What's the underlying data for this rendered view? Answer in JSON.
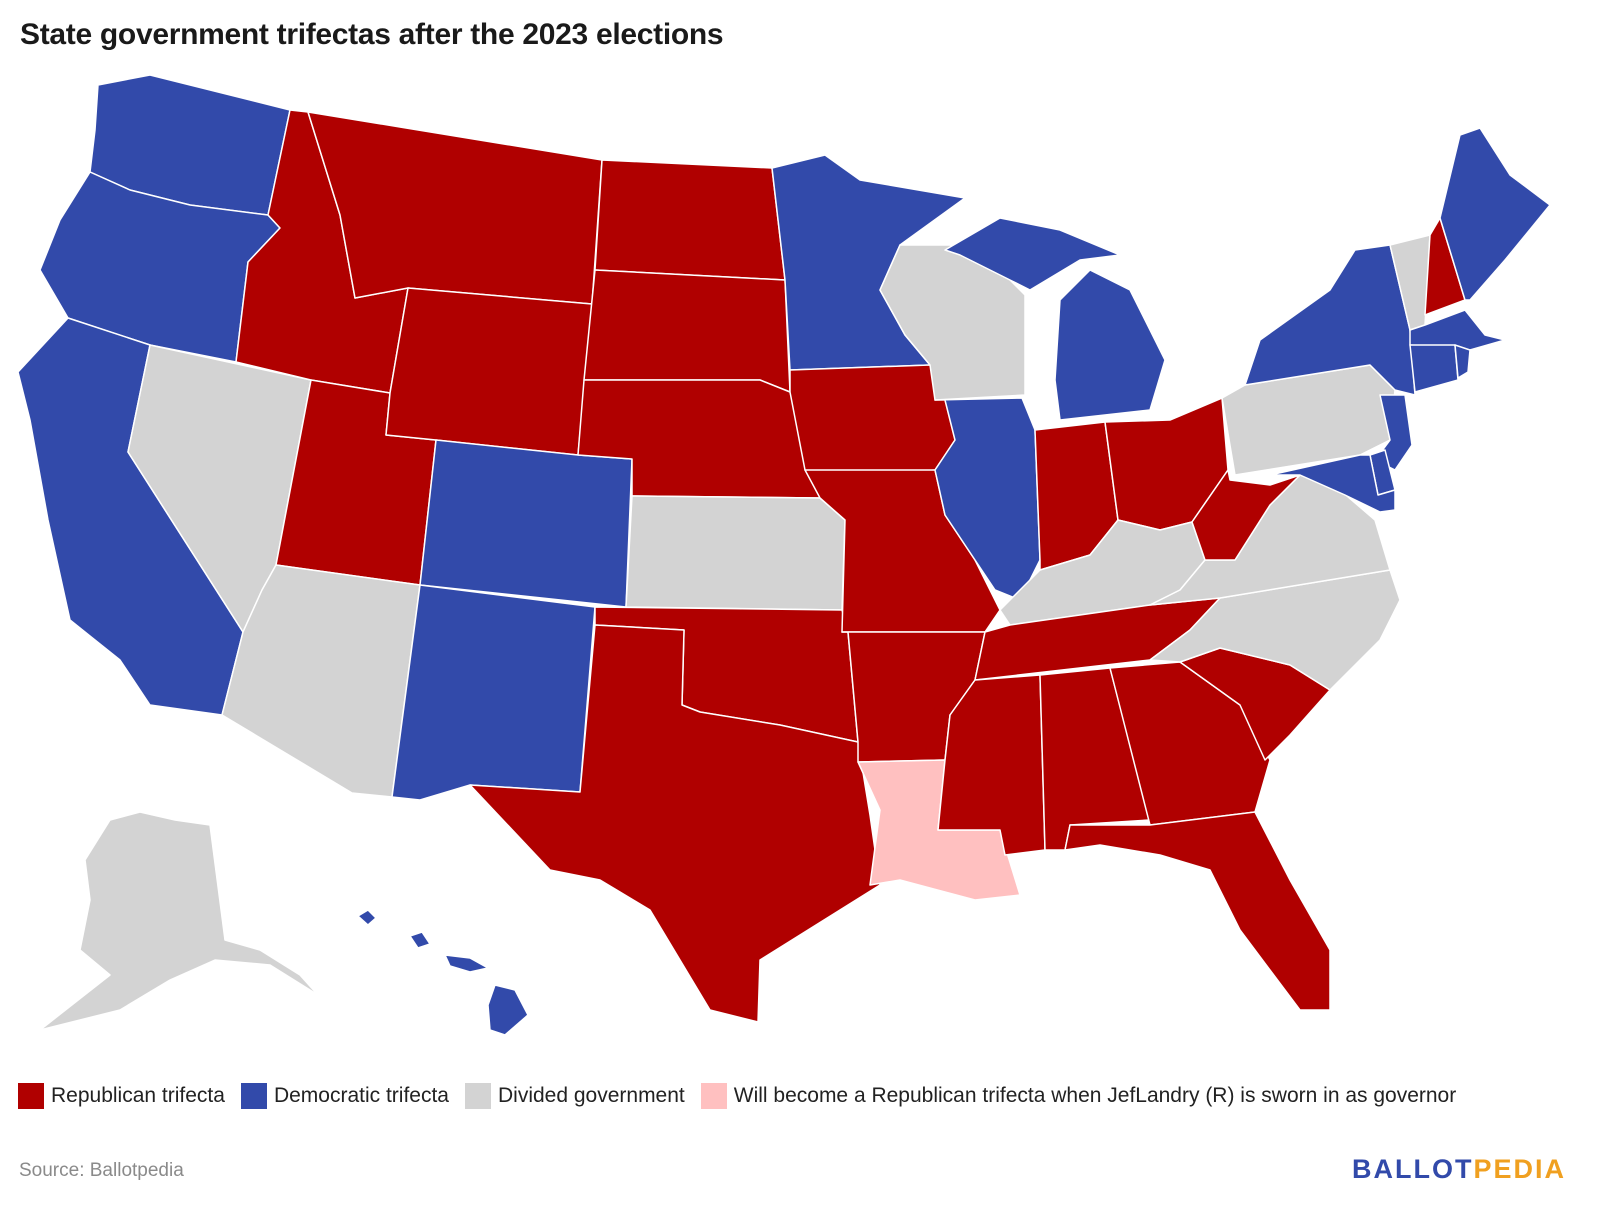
{
  "title": "State government trifectas after the 2023 elections",
  "colors": {
    "republican": "#b00000",
    "democratic": "#324aaa",
    "divided": "#d3d3d3",
    "pending_republican": "#ffc0c0",
    "logo_blue": "#324aaa",
    "logo_orange": "#f0a020"
  },
  "legend": [
    {
      "key": "republican",
      "label": "Republican trifecta"
    },
    {
      "key": "democratic",
      "label": "Democratic trifecta"
    },
    {
      "key": "divided",
      "label": "Divided government"
    },
    {
      "key": "pending_republican",
      "label": "Will become a Republican trifecta when JefLandry (R) is sworn in as governor"
    }
  ],
  "states": {
    "WA": "democratic",
    "OR": "democratic",
    "CA": "democratic",
    "ID": "republican",
    "NV": "divided",
    "AZ": "divided",
    "UT": "republican",
    "MT": "republican",
    "WY": "republican",
    "CO": "democratic",
    "NM": "democratic",
    "ND": "republican",
    "SD": "republican",
    "NE": "republican",
    "KS": "divided",
    "OK": "republican",
    "TX": "republican",
    "MN": "democratic",
    "IA": "republican",
    "MO": "republican",
    "AR": "republican",
    "LA": "pending_republican",
    "WI": "divided",
    "IL": "democratic",
    "MI": "democratic",
    "IN": "republican",
    "OH": "republican",
    "KY": "divided",
    "TN": "republican",
    "MS": "republican",
    "AL": "republican",
    "GA": "republican",
    "FL": "republican",
    "SC": "republican",
    "NC": "divided",
    "VA": "divided",
    "WV": "republican",
    "PA": "divided",
    "NY": "democratic",
    "VT": "divided",
    "NH": "republican",
    "ME": "democratic",
    "MA": "democratic",
    "CT": "democratic",
    "RI": "democratic",
    "NJ": "democratic",
    "DE": "democratic",
    "MD": "democratic",
    "AK": "divided",
    "HI": "democratic"
  },
  "source": "Source: Ballotpedia",
  "logo": {
    "part1": "BALLOT",
    "part2": "PEDIA"
  }
}
